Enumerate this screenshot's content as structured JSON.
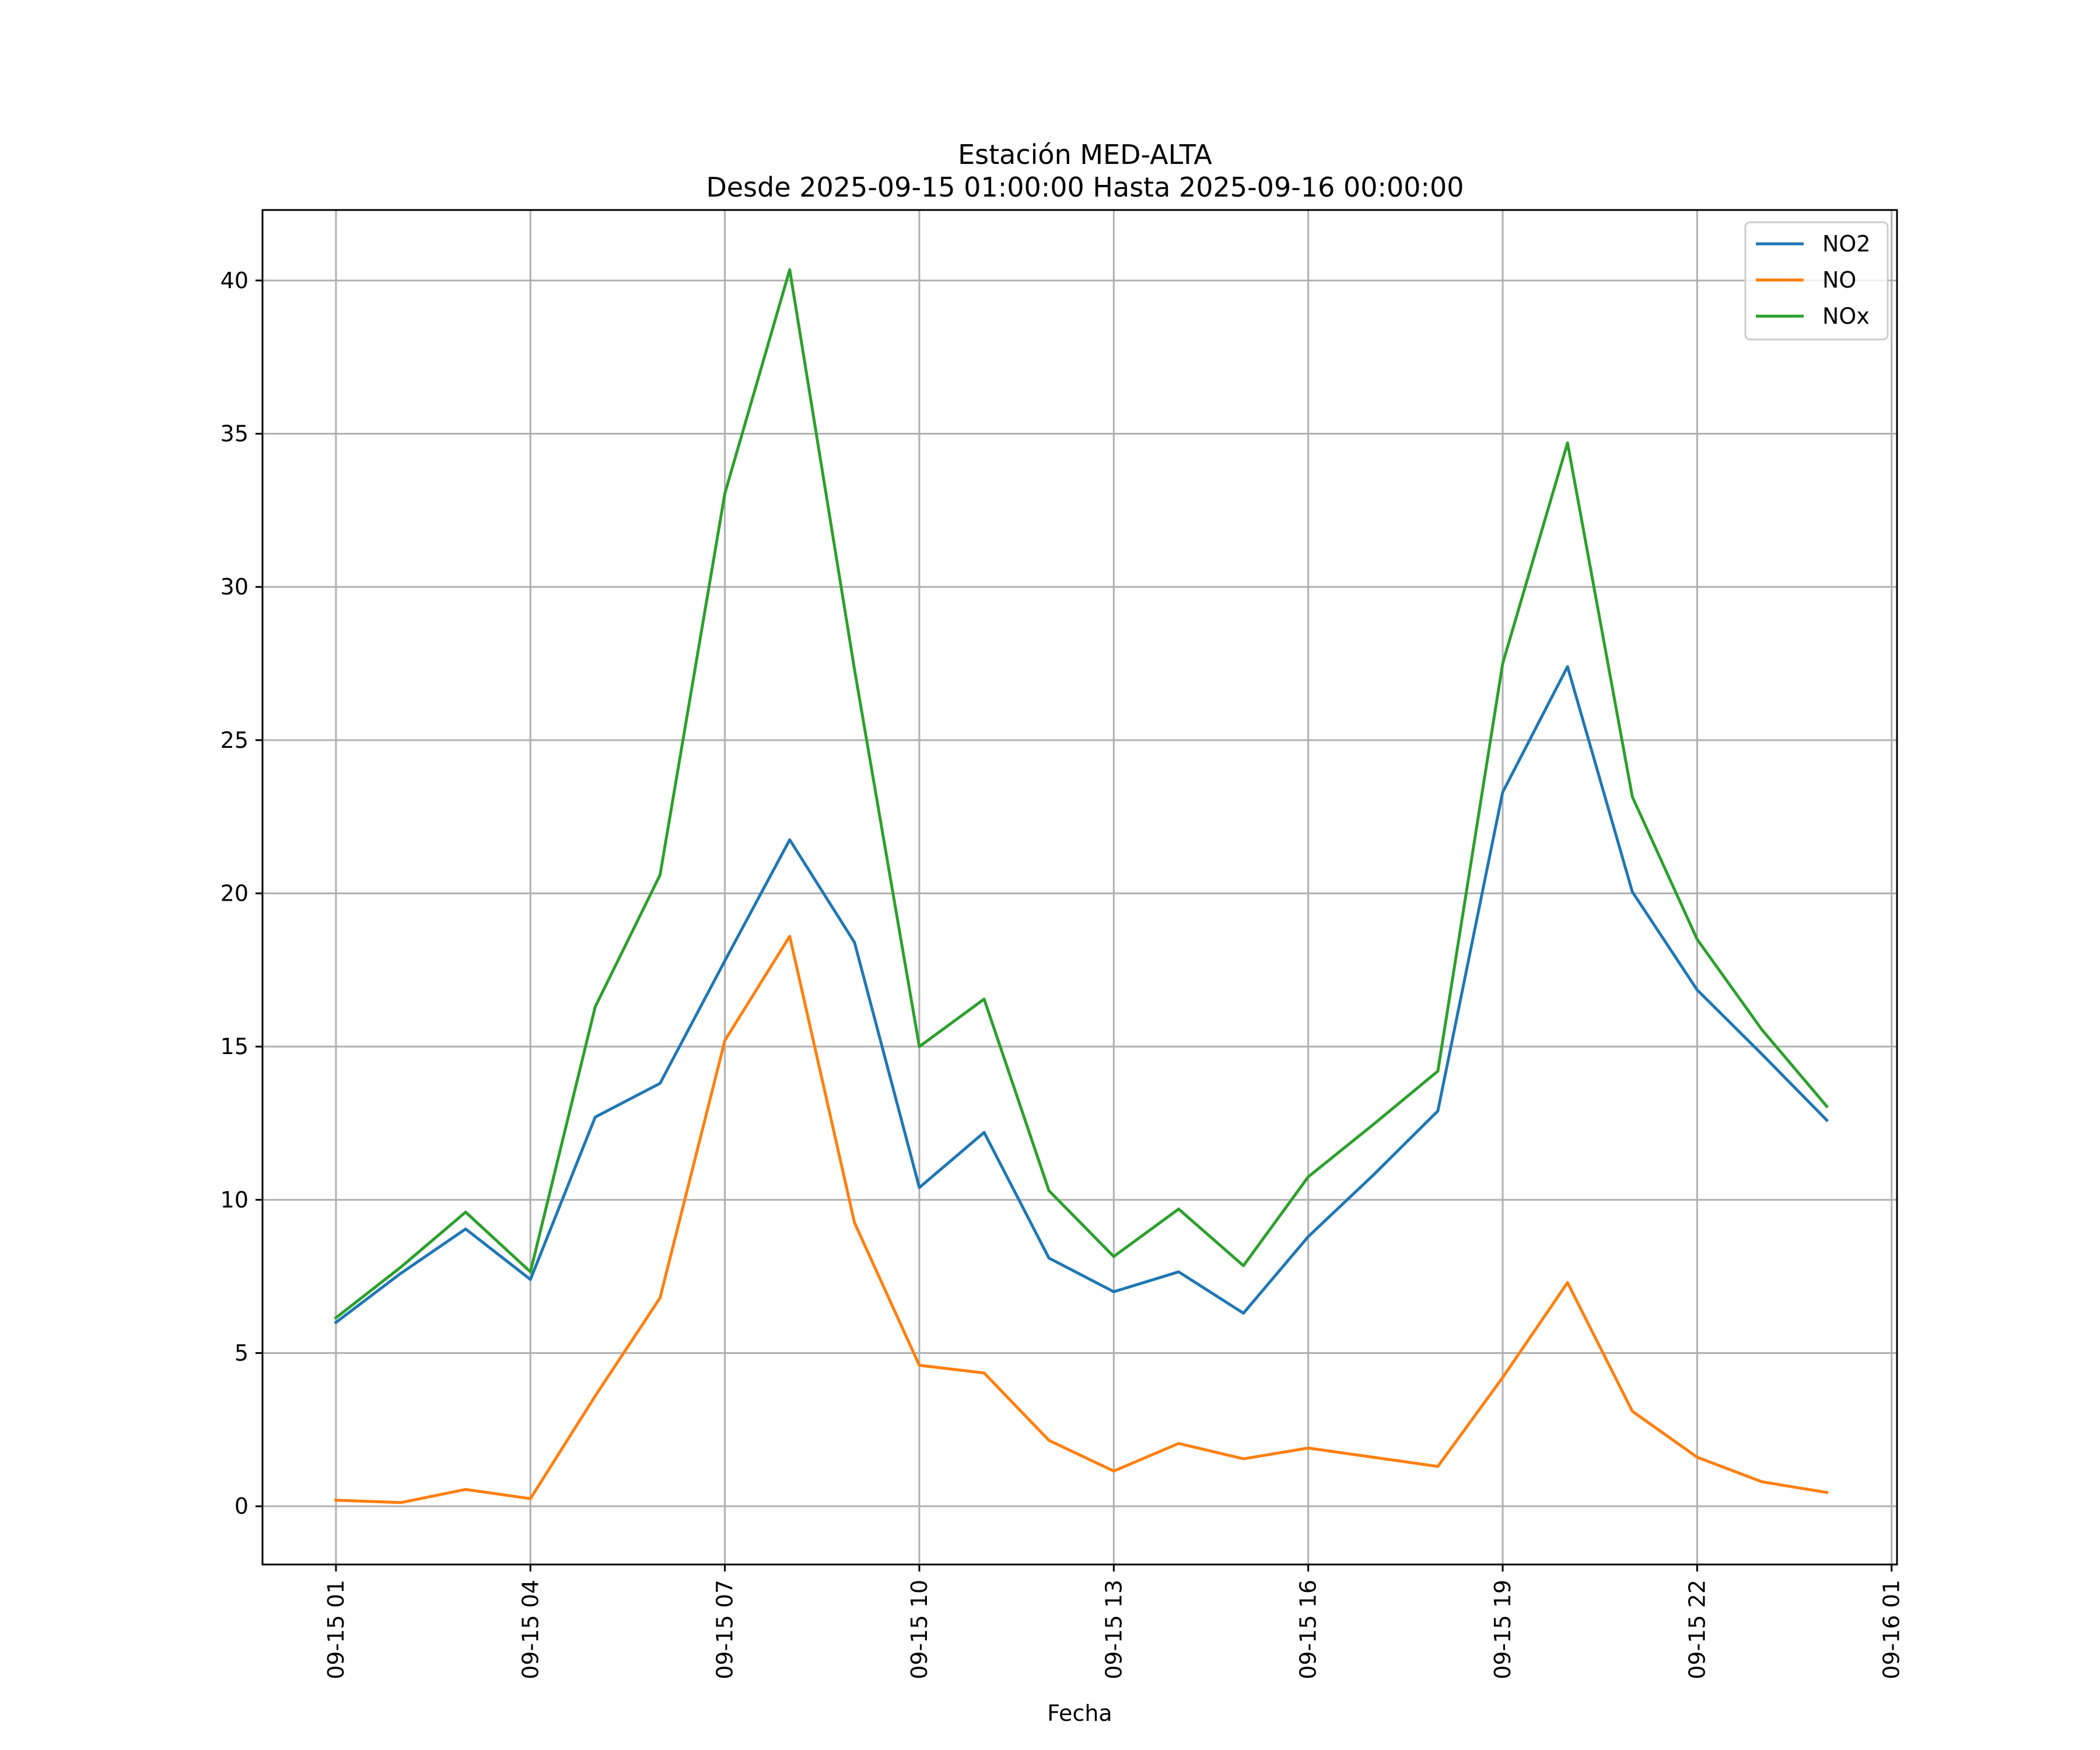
{
  "chart_data": {
    "type": "line",
    "title": "Estación MED-ALTA",
    "subtitle": "Desde 2025-09-15 01:00:00 Hasta 2025-09-16 00:00:00",
    "xlabel": "Fecha",
    "ylabel": "",
    "x": [
      "2025-09-15 01:00",
      "2025-09-15 02:00",
      "2025-09-15 03:00",
      "2025-09-15 04:00",
      "2025-09-15 05:00",
      "2025-09-15 06:00",
      "2025-09-15 07:00",
      "2025-09-15 08:00",
      "2025-09-15 09:00",
      "2025-09-15 10:00",
      "2025-09-15 11:00",
      "2025-09-15 12:00",
      "2025-09-15 13:00",
      "2025-09-15 14:00",
      "2025-09-15 15:00",
      "2025-09-15 16:00",
      "2025-09-15 17:00",
      "2025-09-15 18:00",
      "2025-09-15 19:00",
      "2025-09-15 20:00",
      "2025-09-15 21:00",
      "2025-09-15 22:00",
      "2025-09-15 23:00",
      "2025-09-16 00:00"
    ],
    "xticks": [
      {
        "x": "2025-09-15 01:00",
        "label": "09-15 01"
      },
      {
        "x": "2025-09-15 04:00",
        "label": "09-15 04"
      },
      {
        "x": "2025-09-15 07:00",
        "label": "09-15 07"
      },
      {
        "x": "2025-09-15 10:00",
        "label": "09-15 10"
      },
      {
        "x": "2025-09-15 13:00",
        "label": "09-15 13"
      },
      {
        "x": "2025-09-15 16:00",
        "label": "09-15 16"
      },
      {
        "x": "2025-09-15 19:00",
        "label": "09-15 19"
      },
      {
        "x": "2025-09-15 22:00",
        "label": "09-15 22"
      },
      {
        "x": "2025-09-16 01:00",
        "label": "09-16 01"
      }
    ],
    "xlim": [
      "2025-09-14 23:52",
      "2025-09-16 01:05"
    ],
    "ylim": [
      -1.9,
      42.3
    ],
    "yticks": [
      0,
      5,
      10,
      15,
      20,
      25,
      30,
      35,
      40
    ],
    "grid": true,
    "legend_position": "top-right",
    "series": [
      {
        "name": "NO2",
        "color": "#1f77b4",
        "values": [
          6.0,
          7.6,
          9.05,
          7.4,
          12.7,
          13.8,
          17.8,
          21.75,
          18.4,
          10.4,
          12.2,
          8.1,
          7.0,
          7.65,
          6.3,
          8.8,
          10.8,
          12.9,
          23.3,
          27.4,
          20.05,
          16.85,
          14.75,
          12.6
        ]
      },
      {
        "name": "NO",
        "color": "#ff7f0e",
        "values": [
          0.2,
          0.12,
          0.55,
          0.25,
          3.6,
          6.8,
          15.2,
          18.6,
          9.25,
          4.6,
          4.35,
          2.15,
          1.15,
          2.05,
          1.55,
          1.9,
          1.6,
          1.3,
          4.2,
          7.3,
          3.1,
          1.6,
          0.8,
          0.45
        ]
      },
      {
        "name": "NOx",
        "color": "#2ca02c",
        "values": [
          6.15,
          7.8,
          9.6,
          7.65,
          16.3,
          20.6,
          33.05,
          40.35,
          27.3,
          15.0,
          16.55,
          10.3,
          8.15,
          9.7,
          7.85,
          10.75,
          12.45,
          14.2,
          27.5,
          34.7,
          23.15,
          18.5,
          15.55,
          13.05
        ]
      }
    ]
  }
}
